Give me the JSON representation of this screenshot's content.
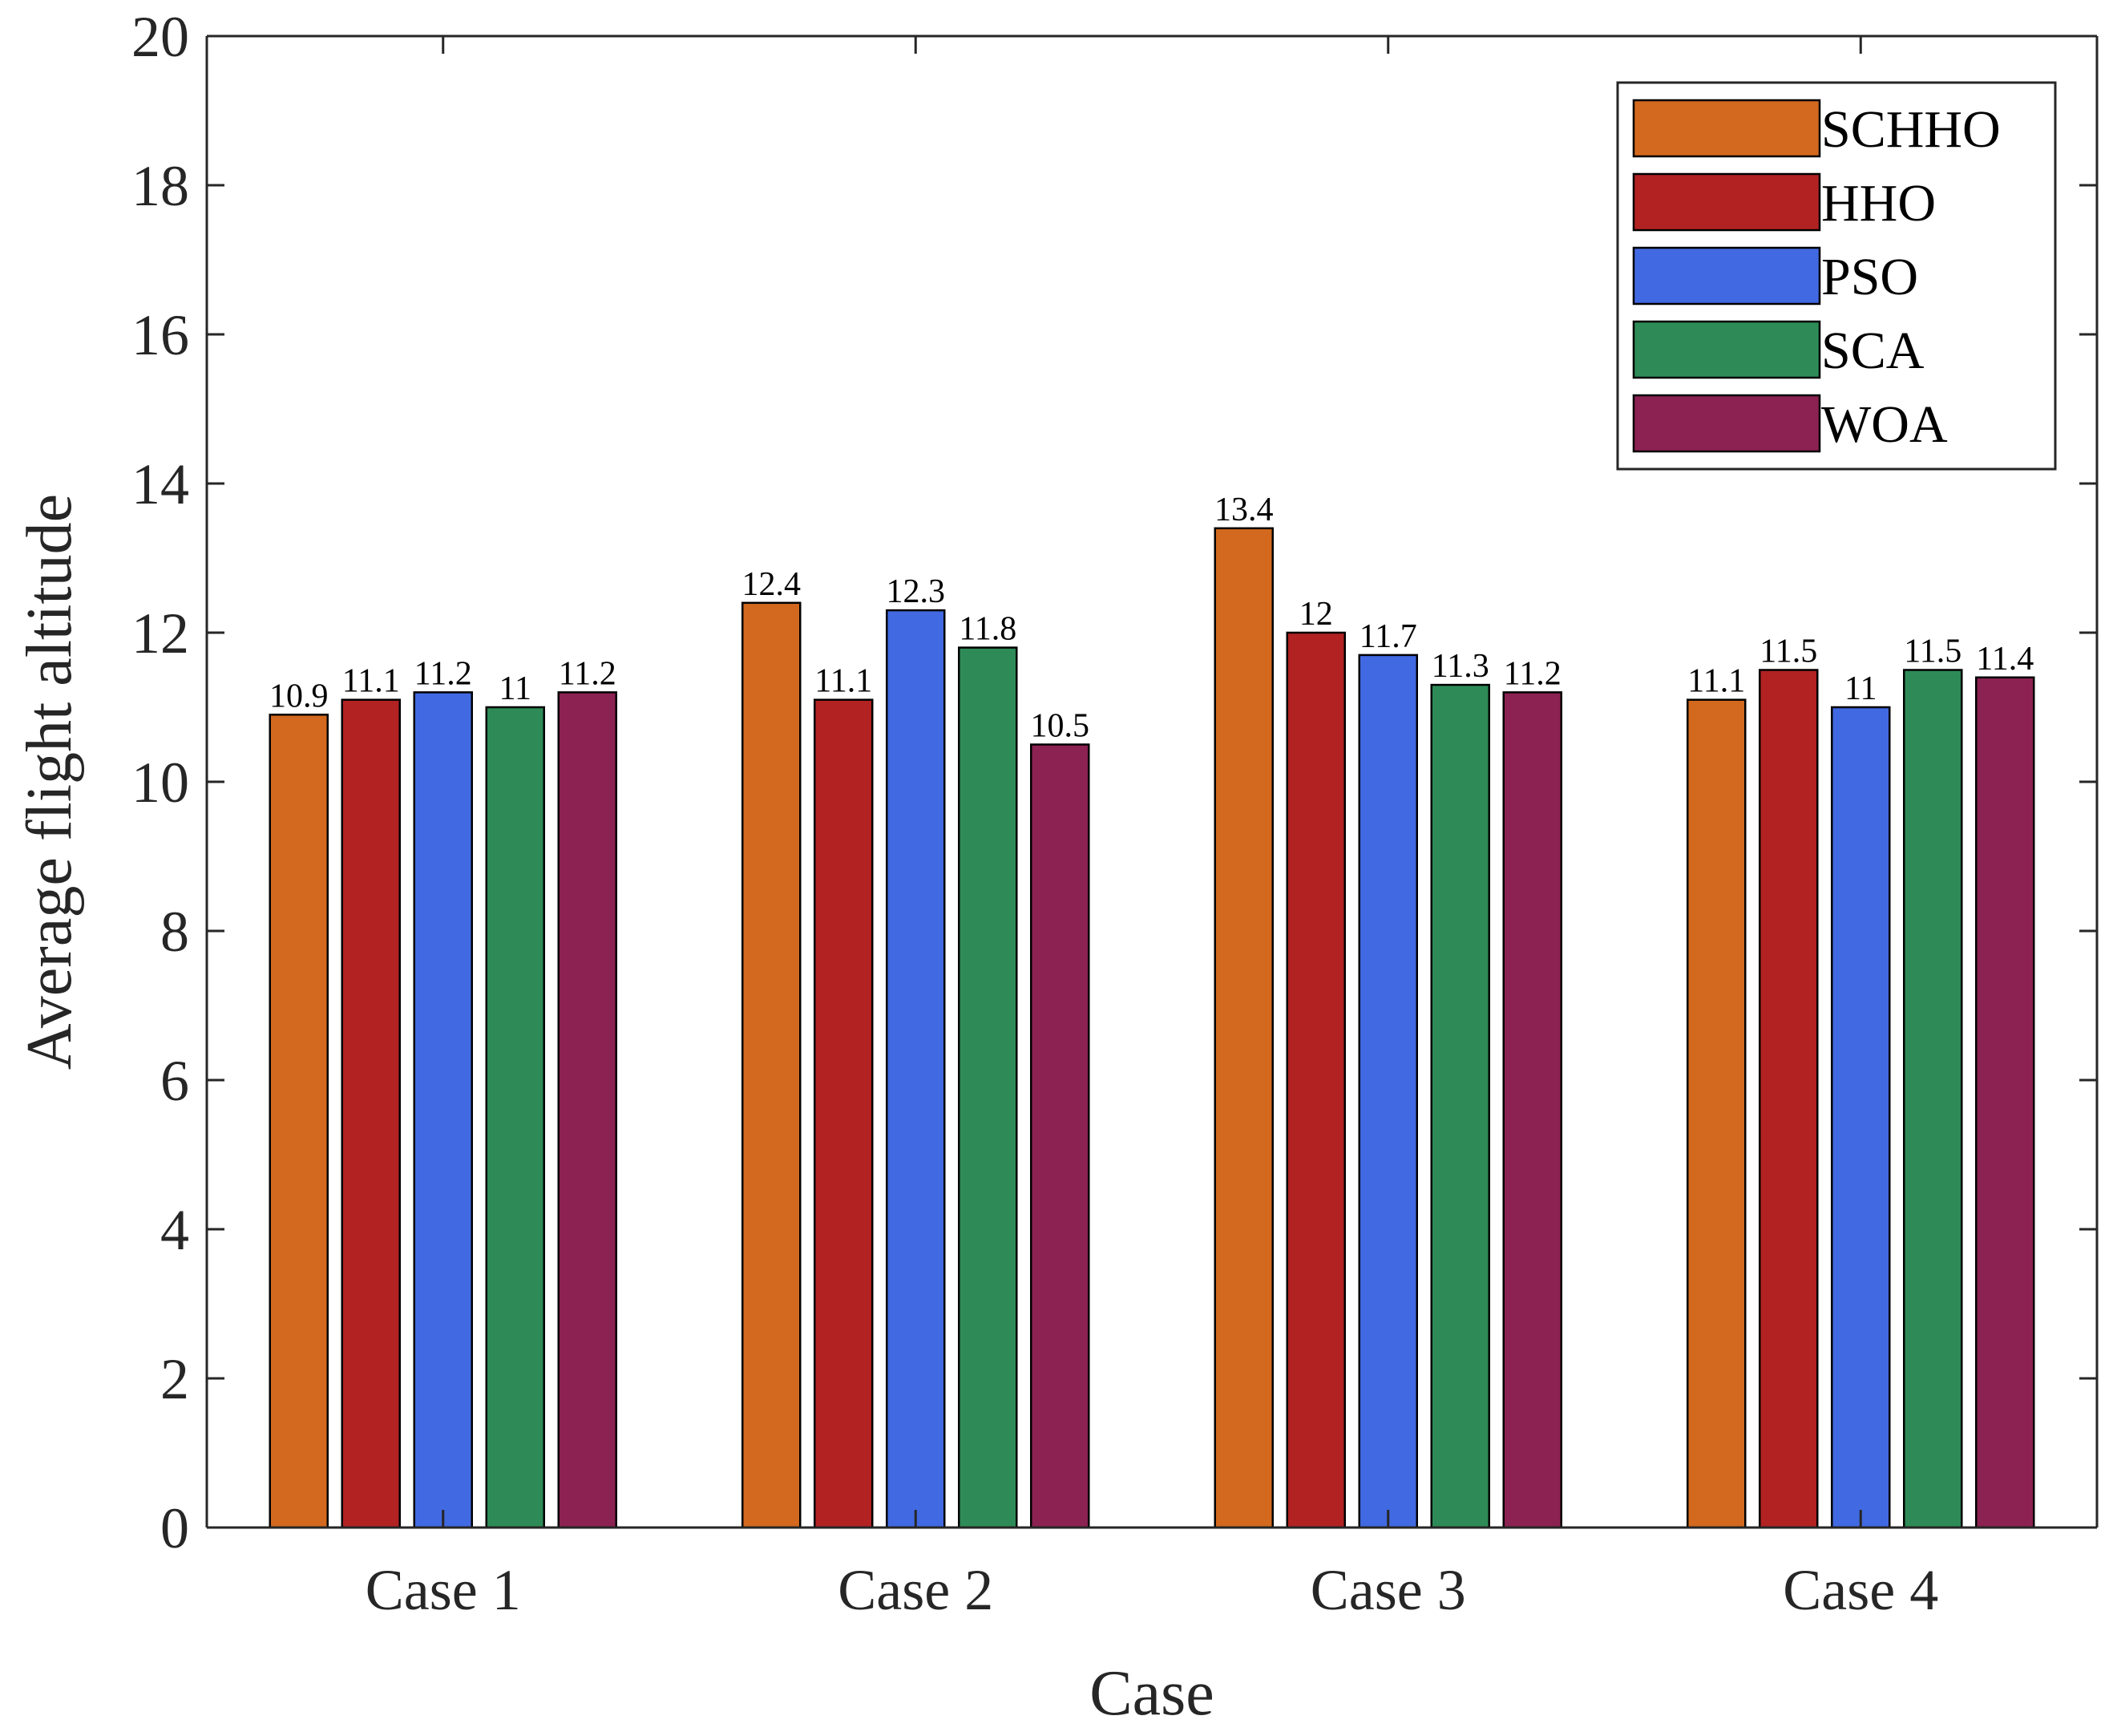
{
  "chart_data": {
    "type": "bar",
    "title": "",
    "xlabel": "Case",
    "ylabel": "Average flight altitude",
    "categories": [
      "Case 1",
      "Case 2",
      "Case 3",
      "Case 4"
    ],
    "ylim": [
      0,
      20
    ],
    "yticks": [
      0,
      2,
      4,
      6,
      8,
      10,
      12,
      14,
      16,
      18,
      20
    ],
    "yticklabels": [
      "0",
      "2",
      "4",
      "6",
      "8",
      "10",
      "12",
      "14",
      "16",
      "18",
      "20"
    ],
    "grid": false,
    "legend_position": "top-right",
    "series": [
      {
        "name": "SCHHO",
        "color": "#D2691E",
        "values": [
          10.9,
          12.4,
          13.4,
          11.1
        ],
        "labels": [
          "10.9",
          "12.4",
          "13.4",
          "11.1"
        ]
      },
      {
        "name": "HHO",
        "color": "#B22222",
        "values": [
          11.1,
          11.1,
          12,
          11.5
        ],
        "labels": [
          "11.1",
          "11.1",
          "12",
          "11.5"
        ]
      },
      {
        "name": "PSO",
        "color": "#4169E1",
        "values": [
          11.2,
          12.3,
          11.7,
          11
        ],
        "labels": [
          "11.2",
          "12.3",
          "11.7",
          "11"
        ]
      },
      {
        "name": "SCA",
        "color": "#2E8B57",
        "values": [
          11,
          11.8,
          11.3,
          11.5
        ],
        "labels": [
          "11",
          "11.8",
          "11.3",
          "11.5"
        ]
      },
      {
        "name": "WOA",
        "color": "#8B2252",
        "values": [
          11.2,
          10.5,
          11.2,
          11.4
        ],
        "labels": [
          "11.2",
          "10.5",
          "11.2",
          "11.4"
        ]
      }
    ]
  }
}
